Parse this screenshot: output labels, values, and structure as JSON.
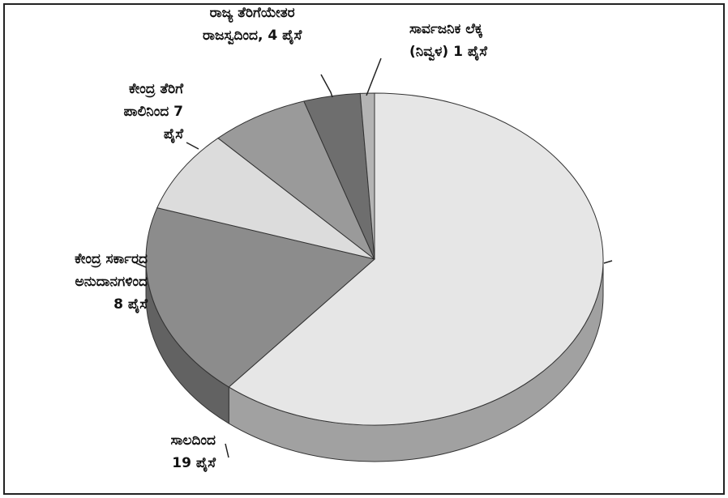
{
  "chart_data": {
    "type": "pie3d",
    "categories": [
      null,
      "ಸಾಲದಿಂದ\n19 ಪೈಸೆ",
      "ಕೇಂದ್ರ ಸರ್ಕಾರದ\nಅನುದಾನಗಳಿಂದ\n8 ಪೈಸೆ",
      "ಕೇಂದ್ರ ತೆರಿಗೆ\nಪಾಲಿನಿಂದ 7\nಪೈಸೆ",
      "ರಾಜ್ಯ ತೆರಿಗೆಯೇತರ\nರಾಜಸ್ವದಿಂದ, 4 ಪೈಸೆ",
      "ಸಾರ್ವಜನಿಕ ಲೆಕ್ಕ\n(ನಿವ್ವಳ) 1 ಪೈಸೆ"
    ],
    "values": [
      61,
      19,
      8,
      7,
      4,
      1
    ],
    "colors": [
      "#e6e6e6",
      "#8c8c8c",
      "#dcdcdc",
      "#9a9a9a",
      "#6e6e6e",
      "#b4b4b4"
    ]
  }
}
